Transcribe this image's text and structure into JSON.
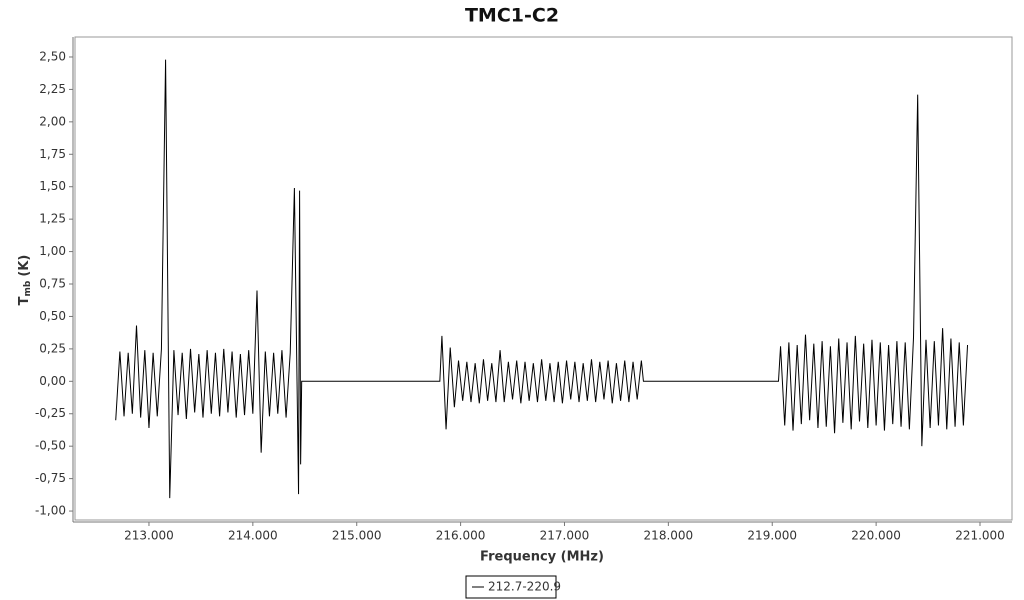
{
  "chart_data": {
    "type": "line",
    "title": "TMC1-C2",
    "xlabel": "Frequency (MHz)",
    "ylabel": {
      "main": "T",
      "sub": "mb",
      "unit": "(K)"
    },
    "xlim": [
      212.288,
      221.308
    ],
    "ylim": [
      -1.069,
      2.654
    ],
    "xticks": [
      {
        "value": 213,
        "label": "213.000"
      },
      {
        "value": 214,
        "label": "214.000"
      },
      {
        "value": 215,
        "label": "215.000"
      },
      {
        "value": 216,
        "label": "216.000"
      },
      {
        "value": 217,
        "label": "217.000"
      },
      {
        "value": 218,
        "label": "218.000"
      },
      {
        "value": 219,
        "label": "219.000"
      },
      {
        "value": 220,
        "label": "220.000"
      },
      {
        "value": 221,
        "label": "221.000"
      }
    ],
    "yticks": [
      {
        "value": -1,
        "label": "-1,00"
      },
      {
        "value": -0.75,
        "label": "-0,75"
      },
      {
        "value": -0.5,
        "label": "-0,50"
      },
      {
        "value": -0.25,
        "label": "-0,25"
      },
      {
        "value": 0,
        "label": "0,00"
      },
      {
        "value": 0.25,
        "label": "0,25"
      },
      {
        "value": 0.5,
        "label": "0,50"
      },
      {
        "value": 0.75,
        "label": "0,75"
      },
      {
        "value": 1,
        "label": "1,00"
      },
      {
        "value": 1.25,
        "label": "1,25"
      },
      {
        "value": 1.5,
        "label": "1,50"
      },
      {
        "value": 1.75,
        "label": "1,75"
      },
      {
        "value": 2,
        "label": "2,00"
      },
      {
        "value": 2.25,
        "label": "2,25"
      },
      {
        "value": 2.5,
        "label": "2,50"
      }
    ],
    "legend": "bottom",
    "x": [
      212.68,
      212.72,
      212.76,
      212.8,
      212.84,
      212.88,
      212.92,
      212.96,
      213,
      213.04,
      213.08,
      213.12,
      213.16,
      213.2,
      213.24,
      213.28,
      213.32,
      213.36,
      213.4,
      213.44,
      213.48,
      213.52,
      213.56,
      213.6,
      213.64,
      213.68,
      213.72,
      213.76,
      213.8,
      213.84,
      213.88,
      213.92,
      213.96,
      214,
      214.04,
      214.08,
      214.12,
      214.16,
      214.2,
      214.24,
      214.28,
      214.32,
      214.36,
      214.4,
      214.44,
      214.45,
      214.46,
      214.47,
      215.8,
      215.82,
      215.86,
      215.9,
      215.94,
      215.98,
      216.02,
      216.06,
      216.1,
      216.14,
      216.18,
      216.22,
      216.26,
      216.3,
      216.34,
      216.38,
      216.42,
      216.46,
      216.5,
      216.54,
      216.58,
      216.62,
      216.66,
      216.7,
      216.74,
      216.78,
      216.82,
      216.86,
      216.9,
      216.94,
      216.98,
      217.02,
      217.06,
      217.1,
      217.14,
      217.18,
      217.22,
      217.26,
      217.3,
      217.34,
      217.38,
      217.42,
      217.46,
      217.5,
      217.54,
      217.58,
      217.62,
      217.66,
      217.7,
      217.74,
      217.76,
      219.06,
      219.08,
      219.12,
      219.16,
      219.2,
      219.24,
      219.28,
      219.32,
      219.36,
      219.4,
      219.44,
      219.48,
      219.52,
      219.56,
      219.6,
      219.64,
      219.68,
      219.72,
      219.76,
      219.8,
      219.84,
      219.88,
      219.92,
      219.96,
      220,
      220.04,
      220.08,
      220.12,
      220.16,
      220.2,
      220.24,
      220.28,
      220.32,
      220.36,
      220.4,
      220.44,
      220.48,
      220.52,
      220.56,
      220.6,
      220.64,
      220.68,
      220.72,
      220.76,
      220.8,
      220.84,
      220.88
    ],
    "series": [
      {
        "name": "212.7-220.9",
        "color": "#000000",
        "values": [
          -0.3,
          0.23,
          -0.27,
          0.22,
          -0.25,
          0.43,
          -0.28,
          0.24,
          -0.36,
          0.22,
          -0.27,
          0.25,
          2.48,
          -0.9,
          0.24,
          -0.26,
          0.22,
          -0.29,
          0.25,
          -0.24,
          0.21,
          -0.28,
          0.24,
          -0.25,
          0.22,
          -0.27,
          0.25,
          -0.24,
          0.23,
          -0.28,
          0.21,
          -0.26,
          0.24,
          -0.25,
          0.7,
          -0.55,
          0.23,
          -0.27,
          0.22,
          -0.25,
          0.24,
          -0.28,
          0.22,
          1.49,
          -0.87,
          1.47,
          -0.64,
          0,
          0,
          0.35,
          -0.37,
          0.26,
          -0.2,
          0.16,
          -0.15,
          0.15,
          -0.16,
          0.14,
          -0.17,
          0.17,
          -0.15,
          0.14,
          -0.16,
          0.24,
          -0.16,
          0.15,
          -0.14,
          0.16,
          -0.17,
          0.15,
          -0.15,
          0.14,
          -0.16,
          0.17,
          -0.15,
          0.14,
          -0.16,
          0.15,
          -0.17,
          0.16,
          -0.14,
          0.15,
          -0.16,
          0.14,
          -0.15,
          0.17,
          -0.16,
          0.15,
          -0.14,
          0.16,
          -0.17,
          0.14,
          -0.15,
          0.16,
          -0.16,
          0.15,
          -0.14,
          0.16,
          0,
          0,
          0.27,
          -0.34,
          0.3,
          -0.38,
          0.28,
          -0.33,
          0.36,
          -0.3,
          0.29,
          -0.36,
          0.31,
          -0.35,
          0.27,
          -0.4,
          0.33,
          -0.32,
          0.3,
          -0.37,
          0.35,
          -0.31,
          0.29,
          -0.36,
          0.32,
          -0.34,
          0.3,
          -0.38,
          0.28,
          -0.33,
          0.31,
          -0.35,
          0.3,
          -0.37,
          0.34,
          2.21,
          -0.5,
          0.32,
          -0.36,
          0.31,
          -0.34,
          0.41,
          -0.37,
          0.33,
          -0.35,
          0.3,
          -0.34,
          0.28
        ]
      }
    ]
  }
}
